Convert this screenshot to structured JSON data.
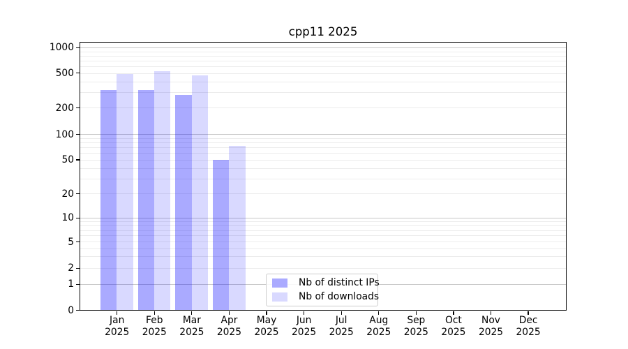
{
  "title": "cpp11 2025",
  "legend": {
    "items": [
      {
        "label": "Nb of distinct IPs",
        "color": "#aaaaff"
      },
      {
        "label": "Nb of downloads",
        "color": "#d9d9ff"
      }
    ]
  },
  "chart_data": {
    "type": "bar",
    "title": "cpp11 2025",
    "categories": [
      "Jan 2025",
      "Feb 2025",
      "Mar 2025",
      "Apr 2025",
      "May 2025",
      "Jun 2025",
      "Jul 2025",
      "Aug 2025",
      "Sep 2025",
      "Oct 2025",
      "Nov 2025",
      "Dec 2025"
    ],
    "series": [
      {
        "name": "Nb of distinct IPs",
        "color": "#aaaaff",
        "values": [
          320,
          320,
          280,
          50,
          null,
          null,
          null,
          null,
          null,
          null,
          null,
          null
        ]
      },
      {
        "name": "Nb of downloads",
        "color": "#d9d9ff",
        "values": [
          490,
          530,
          470,
          73,
          null,
          null,
          null,
          null,
          null,
          null,
          null,
          null
        ]
      }
    ],
    "xlabel": "",
    "ylabel": "",
    "yscale": "symlog",
    "yticks": [
      0,
      1,
      2,
      5,
      10,
      20,
      50,
      100,
      200,
      500,
      1000
    ],
    "ylim": [
      0,
      1000
    ],
    "grid": "horizontal major and minor gridlines",
    "legend_position": "lower center"
  }
}
